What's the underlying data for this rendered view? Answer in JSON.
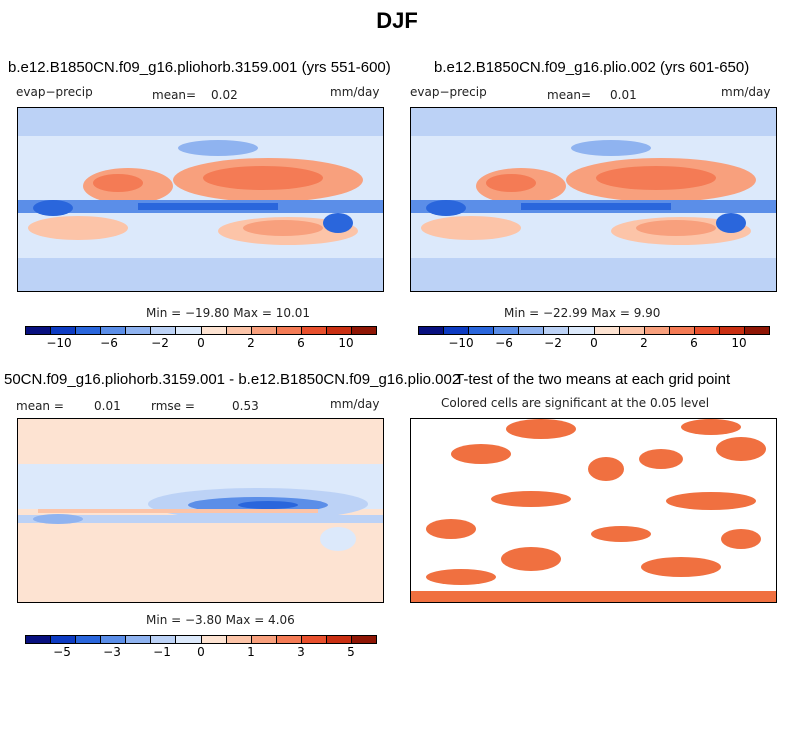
{
  "figure": {
    "title": "DJF"
  },
  "panels": [
    {
      "title": "b.e12.B1850CN.f09_g16.pliohorb.3159.001 (yrs 551-600)",
      "variable": "evap−precip",
      "mean_label": "mean=",
      "mean_value": "0.02",
      "units": "mm/day",
      "minmax": "Min = −19.80 Max =   10.01",
      "colorbar_ticks": [
        "−10",
        "−6",
        "−2",
        "0",
        "2",
        "6",
        "10"
      ]
    },
    {
      "title": "b.e12.B1850CN.f09_g16.plio.002 (yrs 601-650)",
      "variable": "evap−precip",
      "mean_label": "mean=",
      "mean_value": "0.01",
      "units": "mm/day",
      "minmax": "Min = −22.99 Max =    9.90",
      "colorbar_ticks": [
        "−10",
        "−6",
        "−2",
        "0",
        "2",
        "6",
        "10"
      ]
    },
    {
      "title": "50CN.f09_g16.pliohorb.3159.001 - b.e12.B1850CN.f09_g16.plio.002",
      "mean_label": "mean =",
      "mean_value": "0.01",
      "rmse_label": "rmse =",
      "rmse_value": "0.53",
      "units": "mm/day",
      "minmax": "Min =  −3.80 Max =    4.06",
      "colorbar_ticks": [
        "−5",
        "−3",
        "−1",
        "0",
        "1",
        "3",
        "5"
      ]
    },
    {
      "title": "T-test of the two means at each grid point",
      "subtitle": "Colored cells are significant at the 0.05 level"
    }
  ],
  "colors": {
    "scale": [
      "#08107f",
      "#0d3bc2",
      "#2a66dc",
      "#5b8ee8",
      "#8fb3f0",
      "#bcd2f6",
      "#dce9fb",
      "#fde3d2",
      "#fcc4a8",
      "#f8a07d",
      "#f47b55",
      "#e8502d",
      "#c92f12",
      "#8f1605"
    ],
    "land": "#ffffff",
    "significance": "#f07040"
  }
}
